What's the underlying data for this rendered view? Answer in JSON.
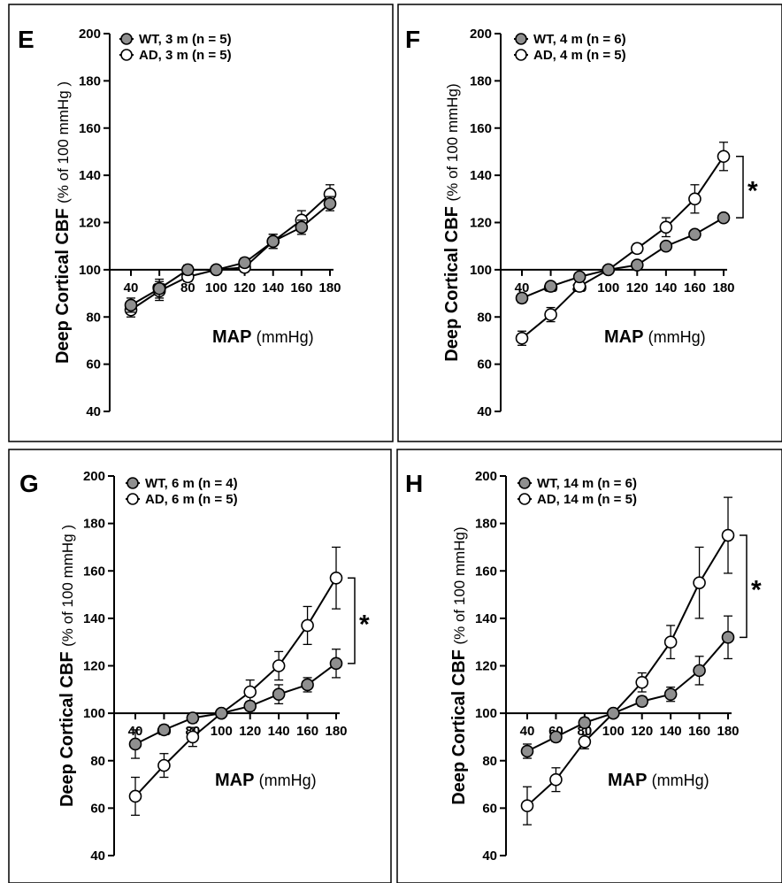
{
  "colors": {
    "wt_fill": "#8f8f8f",
    "ad_fill": "#ffffff",
    "stroke": "#000000"
  },
  "chart_data": [
    {
      "panel": "E",
      "type": "line",
      "xlabel": "MAP",
      "xlabel_unit": "(mmHg)",
      "ylabel": "Deep Cortical CBF",
      "ylabel_unit": "(% of 100 mmHg )",
      "xlim": [
        40,
        180
      ],
      "ylim": [
        40,
        200
      ],
      "axis_cross_y": 100,
      "xticks": [
        40,
        60,
        80,
        100,
        120,
        140,
        160,
        180
      ],
      "xtick_labels": [
        "40",
        "60",
        "80",
        "100",
        "120",
        "140",
        "160",
        "180"
      ],
      "yticks": [
        40,
        60,
        80,
        100,
        120,
        140,
        160,
        180,
        200
      ],
      "legend_position": "top-left",
      "significance": "",
      "series": [
        {
          "name": "WT, 3 m (n = 5)",
          "marker": "filled",
          "x": [
            40,
            60,
            80,
            100,
            120,
            140,
            160,
            180
          ],
          "y": [
            85,
            92,
            100,
            100,
            103,
            112,
            118,
            128
          ],
          "err": [
            3,
            4,
            2,
            0,
            2,
            3,
            3,
            3
          ]
        },
        {
          "name": "AD, 3 m (n = 5)",
          "marker": "open",
          "x": [
            40,
            60,
            80,
            100,
            120,
            140,
            160,
            180
          ],
          "y": [
            83,
            91,
            97,
            100,
            101,
            112,
            121,
            132
          ],
          "err": [
            3,
            4,
            2,
            0,
            2,
            3,
            4,
            4
          ]
        }
      ]
    },
    {
      "panel": "F",
      "type": "line",
      "xlabel": "MAP",
      "xlabel_unit": "(mmHg)",
      "ylabel": "Deep Cortical CBF",
      "ylabel_unit": "(% of 100 mmHg)",
      "xlim": [
        40,
        180
      ],
      "ylim": [
        40,
        200
      ],
      "axis_cross_y": 100,
      "xticks": [
        40,
        60,
        80,
        100,
        120,
        140,
        160,
        180
      ],
      "xtick_labels": [
        "40",
        "60",
        "80",
        "100",
        "120",
        "140",
        "160",
        "180"
      ],
      "yticks": [
        40,
        60,
        80,
        100,
        120,
        140,
        160,
        180,
        200
      ],
      "legend_position": "top-left",
      "significance": "*",
      "series": [
        {
          "name": "WT, 4 m (n = 6)",
          "marker": "filled",
          "x": [
            40,
            60,
            80,
            100,
            120,
            140,
            160,
            180
          ],
          "y": [
            88,
            93,
            97,
            100,
            102,
            110,
            115,
            122
          ],
          "err": [
            2,
            1,
            1,
            0,
            1,
            1,
            1,
            1
          ]
        },
        {
          "name": "AD, 4 m (n = 5)",
          "marker": "open",
          "x": [
            40,
            60,
            80,
            100,
            120,
            140,
            160,
            180
          ],
          "y": [
            71,
            81,
            93,
            100,
            109,
            118,
            130,
            148
          ],
          "err": [
            3,
            3,
            2,
            0,
            2,
            4,
            6,
            6
          ]
        }
      ]
    },
    {
      "panel": "G",
      "type": "line",
      "xlabel": "MAP",
      "xlabel_unit": "(mmHg)",
      "ylabel": "Deep Cortical CBF",
      "ylabel_unit": "(% of 100 mmHg )",
      "xlim": [
        40,
        180
      ],
      "ylim": [
        40,
        200
      ],
      "axis_cross_y": 100,
      "xticks": [
        40,
        60,
        80,
        100,
        120,
        140,
        160,
        180
      ],
      "xtick_labels": [
        "40",
        "60",
        "80",
        "100",
        "120",
        "140",
        "160",
        "180"
      ],
      "yticks": [
        40,
        60,
        80,
        100,
        120,
        140,
        160,
        180,
        200
      ],
      "legend_position": "top-left",
      "significance": "*",
      "series": [
        {
          "name": "WT, 6 m (n = 4)",
          "marker": "filled",
          "x": [
            40,
            60,
            80,
            100,
            120,
            140,
            160,
            180
          ],
          "y": [
            87,
            93,
            98,
            100,
            103,
            108,
            112,
            121
          ],
          "err": [
            6,
            2,
            2,
            0,
            2,
            4,
            3,
            6
          ]
        },
        {
          "name": "AD, 6 m (n = 5)",
          "marker": "open",
          "x": [
            40,
            60,
            80,
            100,
            120,
            140,
            160,
            180
          ],
          "y": [
            65,
            78,
            90,
            100,
            109,
            120,
            137,
            157
          ],
          "err": [
            8,
            5,
            4,
            0,
            5,
            6,
            8,
            13
          ]
        }
      ]
    },
    {
      "panel": "H",
      "type": "line",
      "xlabel": "MAP",
      "xlabel_unit": "(mmHg)",
      "ylabel": "Deep Cortical CBF",
      "ylabel_unit": "(% of 100 mmHg)",
      "xlim": [
        40,
        180
      ],
      "ylim": [
        40,
        200
      ],
      "axis_cross_y": 100,
      "xticks": [
        40,
        60,
        80,
        100,
        120,
        140,
        160,
        180
      ],
      "xtick_labels": [
        "40",
        "60",
        "80",
        "100",
        "120",
        "140",
        "160",
        "180"
      ],
      "yticks": [
        40,
        60,
        80,
        100,
        120,
        140,
        160,
        180,
        200
      ],
      "legend_position": "top-left",
      "significance": "*",
      "series": [
        {
          "name": "WT, 14 m (n = 6)",
          "marker": "filled",
          "x": [
            40,
            60,
            80,
            100,
            120,
            140,
            160,
            180
          ],
          "y": [
            84,
            90,
            96,
            100,
            105,
            108,
            118,
            132
          ],
          "err": [
            3,
            2,
            2,
            0,
            2,
            3,
            6,
            9
          ]
        },
        {
          "name": "AD, 14 m (n = 5)",
          "marker": "open",
          "x": [
            40,
            60,
            80,
            100,
            120,
            140,
            160,
            180
          ],
          "y": [
            61,
            72,
            88,
            100,
            113,
            130,
            155,
            175
          ],
          "err": [
            8,
            5,
            3,
            0,
            4,
            7,
            15,
            16
          ]
        }
      ]
    }
  ]
}
